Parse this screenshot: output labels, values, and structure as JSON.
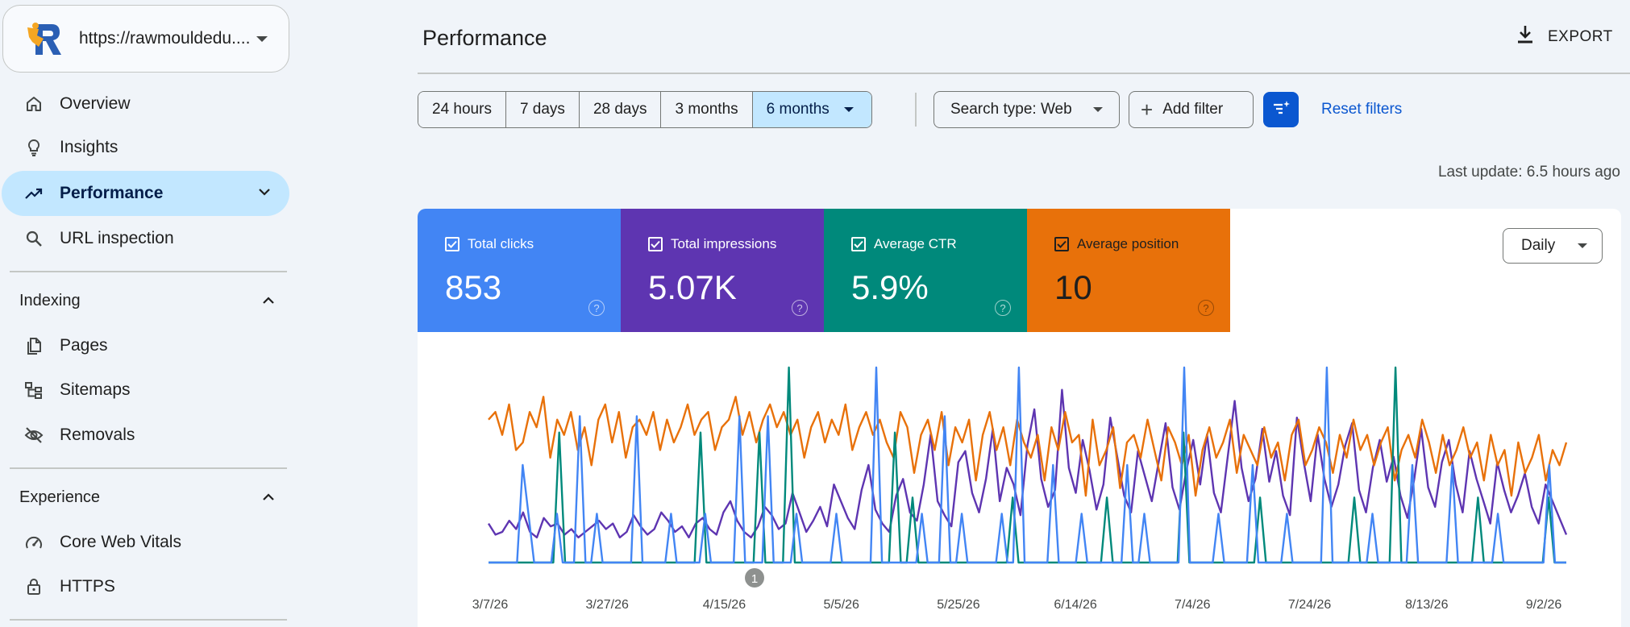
{
  "sidebar": {
    "property_url": "https://rawmouldedu....",
    "items": [
      {
        "label": "Overview",
        "icon": "home-icon"
      },
      {
        "label": "Insights",
        "icon": "lightbulb-icon"
      },
      {
        "label": "Performance",
        "icon": "trending-up-icon"
      },
      {
        "label": "URL inspection",
        "icon": "search-icon"
      }
    ],
    "sections": [
      {
        "title": "Indexing",
        "items": [
          {
            "label": "Pages",
            "icon": "pages-icon"
          },
          {
            "label": "Sitemaps",
            "icon": "sitemap-icon"
          },
          {
            "label": "Removals",
            "icon": "visibility-off-icon"
          }
        ]
      },
      {
        "title": "Experience",
        "items": [
          {
            "label": "Core Web Vitals",
            "icon": "speedometer-icon"
          },
          {
            "label": "HTTPS",
            "icon": "lock-icon"
          }
        ]
      }
    ]
  },
  "header": {
    "title": "Performance",
    "export_label": "EXPORT"
  },
  "filters": {
    "ranges": [
      "24 hours",
      "7 days",
      "28 days",
      "3 months",
      "6 months"
    ],
    "selected_range": "6 months",
    "search_type": "Search type: Web",
    "add_filter": "Add filter",
    "reset": "Reset filters",
    "last_update": "Last update: 6.5 hours ago"
  },
  "metrics": [
    {
      "label": "Total clicks",
      "value": "853",
      "color": "#4285f4"
    },
    {
      "label": "Total impressions",
      "value": "5.07K",
      "color": "#5e35b1"
    },
    {
      "label": "Average CTR",
      "value": "5.9%",
      "color": "#00897b"
    },
    {
      "label": "Average position",
      "value": "10",
      "color": "#e8710a"
    }
  ],
  "granularity": "Daily",
  "annotation_label": "1",
  "chart_data": {
    "type": "line",
    "x_tick_labels": [
      "3/7/26",
      "3/27/26",
      "4/15/26",
      "5/5/26",
      "5/25/26",
      "6/14/26",
      "7/4/26",
      "7/24/26",
      "8/13/26",
      "9/2/26"
    ],
    "series": [
      {
        "name": "Total clicks",
        "color": "#4285f4",
        "values": [
          0,
          0,
          0,
          0,
          0,
          0,
          2,
          1,
          0,
          0,
          0,
          0,
          1,
          0,
          0,
          0,
          3,
          0,
          0,
          1,
          0,
          0,
          0,
          0,
          0,
          0,
          3,
          0,
          0,
          0,
          0,
          0,
          1,
          0,
          0,
          0,
          0,
          0,
          1,
          0,
          0,
          0,
          0,
          0,
          3,
          0,
          0,
          0,
          0,
          3,
          0,
          0,
          0,
          0,
          1,
          0,
          0,
          0,
          0,
          0,
          0,
          1,
          0,
          0,
          0,
          0,
          0,
          0,
          4,
          0,
          0,
          0,
          0,
          0,
          0,
          0,
          1,
          0,
          0,
          0,
          3,
          0,
          0,
          1,
          0,
          0,
          0,
          0,
          0,
          0,
          1,
          0,
          0,
          4,
          0,
          0,
          0,
          0,
          0,
          2,
          0,
          0,
          0,
          0,
          1,
          0,
          0,
          0,
          0,
          0,
          0,
          0,
          2,
          0,
          0,
          1,
          0,
          0,
          0,
          0,
          0,
          0,
          4,
          0,
          0,
          0,
          0,
          0,
          1,
          0,
          0,
          0,
          0,
          0,
          2,
          0,
          0,
          0,
          0,
          0,
          1,
          0,
          0,
          0,
          0,
          0,
          0,
          4,
          0,
          0,
          0,
          0,
          0,
          0,
          0,
          1,
          0,
          0,
          0,
          0,
          0,
          0,
          2,
          0,
          0,
          0,
          0,
          0,
          0,
          2,
          0,
          0,
          0,
          0,
          0,
          0,
          0,
          1,
          0,
          0,
          0,
          0,
          0,
          0,
          0,
          0,
          2,
          0,
          0,
          0
        ]
      },
      {
        "name": "Total impressions",
        "color": "#5e35b1",
        "values": [
          14,
          10,
          11,
          15,
          12,
          18,
          11,
          9,
          16,
          13,
          14,
          10,
          12,
          9,
          11,
          13,
          15,
          12,
          14,
          9,
          11,
          17,
          13,
          10,
          12,
          18,
          15,
          11,
          13,
          9,
          14,
          16,
          12,
          10,
          18,
          22,
          15,
          11,
          9,
          13,
          20,
          17,
          12,
          14,
          25,
          18,
          11,
          15,
          20,
          13,
          28,
          22,
          16,
          12,
          26,
          35,
          19,
          14,
          11,
          24,
          30,
          18,
          15,
          28,
          46,
          22,
          17,
          13,
          36,
          40,
          25,
          18,
          30,
          48,
          22,
          34,
          28,
          17,
          42,
          55,
          30,
          20,
          26,
          62,
          34,
          25,
          44,
          33,
          19,
          28,
          52,
          38,
          24,
          18,
          40,
          31,
          22,
          36,
          50,
          27,
          19,
          33,
          44,
          28,
          46,
          25,
          18,
          38,
          58,
          34,
          22,
          30,
          48,
          29,
          40,
          24,
          17,
          52,
          36,
          22,
          46,
          30,
          20,
          28,
          42,
          50,
          26,
          18,
          34,
          44,
          29,
          38,
          24,
          16,
          30,
          48,
          27,
          20,
          36,
          44,
          28,
          18,
          40,
          30,
          22,
          14,
          36,
          26,
          18,
          24,
          32,
          20,
          14,
          28,
          22,
          16,
          10
        ]
      },
      {
        "name": "Average CTR",
        "color": "#00897b",
        "values": [
          0,
          0,
          0,
          0,
          0,
          0,
          0,
          0,
          0,
          0,
          0,
          0,
          2,
          0,
          0,
          0,
          0,
          0,
          0,
          0,
          0,
          0,
          0,
          0,
          0,
          0,
          0,
          0,
          0,
          0,
          0,
          0,
          0,
          0,
          0,
          0,
          2,
          0,
          0,
          0,
          0,
          0,
          0,
          0,
          0,
          0,
          2,
          0,
          0,
          0,
          0,
          3,
          0,
          0,
          0,
          0,
          0,
          0,
          0,
          0,
          0,
          0,
          0,
          0,
          0,
          0,
          0,
          0,
          0,
          2,
          0,
          0,
          1,
          0,
          0,
          0,
          0,
          0,
          0,
          0,
          0,
          0,
          0,
          0,
          0,
          0,
          0,
          0,
          0,
          1,
          0,
          0,
          0,
          0,
          0,
          0,
          0,
          0,
          0,
          0,
          0,
          0,
          0,
          0,
          0,
          1,
          0,
          0,
          0,
          0,
          0,
          0,
          0,
          0,
          0,
          0,
          0,
          0,
          2,
          0,
          0,
          0,
          0,
          0,
          0,
          0,
          0,
          0,
          0,
          0,
          0,
          1,
          0,
          0,
          0,
          0,
          0,
          0,
          0,
          0,
          0,
          0,
          0,
          0,
          0,
          0,
          0,
          1,
          0,
          0,
          0,
          0,
          0,
          0,
          3,
          0,
          0,
          0,
          0,
          0,
          0,
          0,
          0,
          0,
          0,
          0,
          0,
          0,
          1,
          0,
          0,
          0,
          0,
          0,
          0,
          0,
          0,
          0,
          0,
          0,
          1,
          0,
          0,
          0
        ]
      },
      {
        "name": "Average position",
        "color": "#e8710a",
        "values": [
          10,
          9,
          12,
          8,
          14,
          13,
          9,
          11,
          7,
          15,
          10,
          12,
          9,
          14,
          11,
          16,
          10,
          8,
          13,
          9,
          15,
          11,
          10,
          12,
          9,
          14,
          10,
          13,
          11,
          8,
          12,
          10,
          9,
          14,
          11,
          10,
          7,
          12,
          9,
          13,
          10,
          8,
          11,
          9,
          12,
          10,
          15,
          11,
          9,
          13,
          10,
          12,
          8,
          14,
          11,
          9,
          12,
          10,
          13,
          15,
          9,
          11,
          17,
          12,
          10,
          14,
          9,
          16,
          11,
          13,
          10,
          18,
          12,
          9,
          14,
          11,
          16,
          10,
          13,
          15,
          12,
          18,
          11,
          14,
          9,
          13,
          12,
          20,
          10,
          16,
          14,
          11,
          19,
          13,
          12,
          15,
          10,
          14,
          18,
          11,
          13,
          16,
          12,
          20,
          14,
          11,
          15,
          13,
          10,
          17,
          12,
          14,
          16,
          11,
          15,
          13,
          18,
          12,
          10,
          16,
          14,
          11,
          13,
          17,
          12,
          15,
          10,
          14,
          12,
          16,
          13,
          11,
          18,
          14,
          12,
          15,
          10,
          13,
          17,
          12,
          16,
          14,
          11,
          15,
          13,
          18,
          12,
          16,
          14,
          20,
          13,
          17,
          15,
          12,
          18,
          14,
          16,
          13
        ]
      }
    ]
  }
}
